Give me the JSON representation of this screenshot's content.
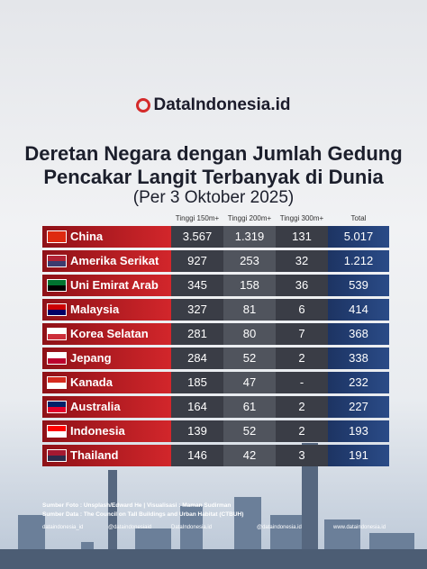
{
  "logo": "DataIndonesia.id",
  "title": [
    "Deretan Negara dengan Jumlah Gedung",
    "Pencakar Langit Terbanyak di Dunia"
  ],
  "subtitle": "(Per 3 Oktober 2025)",
  "table": {
    "headers": [
      "Tinggi 150m+",
      "Tinggi 200m+",
      "Tinggi 300m+",
      "Total"
    ],
    "rows": [
      [
        "China",
        "3.567",
        "1.319",
        "131",
        "5.017"
      ],
      [
        "Amerika Serikat",
        "927",
        "253",
        "32",
        "1.212"
      ],
      [
        "Uni Emirat Arab",
        "345",
        "158",
        "36",
        "539"
      ],
      [
        "Malaysia",
        "327",
        "81",
        "6",
        "414"
      ],
      [
        "Korea Selatan",
        "281",
        "80",
        "7",
        "368"
      ],
      [
        "Jepang",
        "284",
        "52",
        "2",
        "338"
      ],
      [
        "Kanada",
        "185",
        "47",
        "-",
        "232"
      ],
      [
        "Australia",
        "164",
        "61",
        "2",
        "227"
      ],
      [
        "Indonesia",
        "139",
        "52",
        "2",
        "193"
      ],
      [
        "Thailand",
        "146",
        "42",
        "3",
        "191"
      ]
    ]
  },
  "footer": {
    "photo": "Sumber Foto : Unsplash/Edward He | Visualisasi : Maman Sudirman",
    "data": "Sumber Data : The Council on Tall Buildings and Urban Habitat (CTBUH)",
    "socials": [
      "dataindonesia_id",
      "@dataindonesiaid",
      "DataIndonesia.id",
      "@dataindonesia.id",
      "www.dataindonesia.id"
    ]
  }
}
